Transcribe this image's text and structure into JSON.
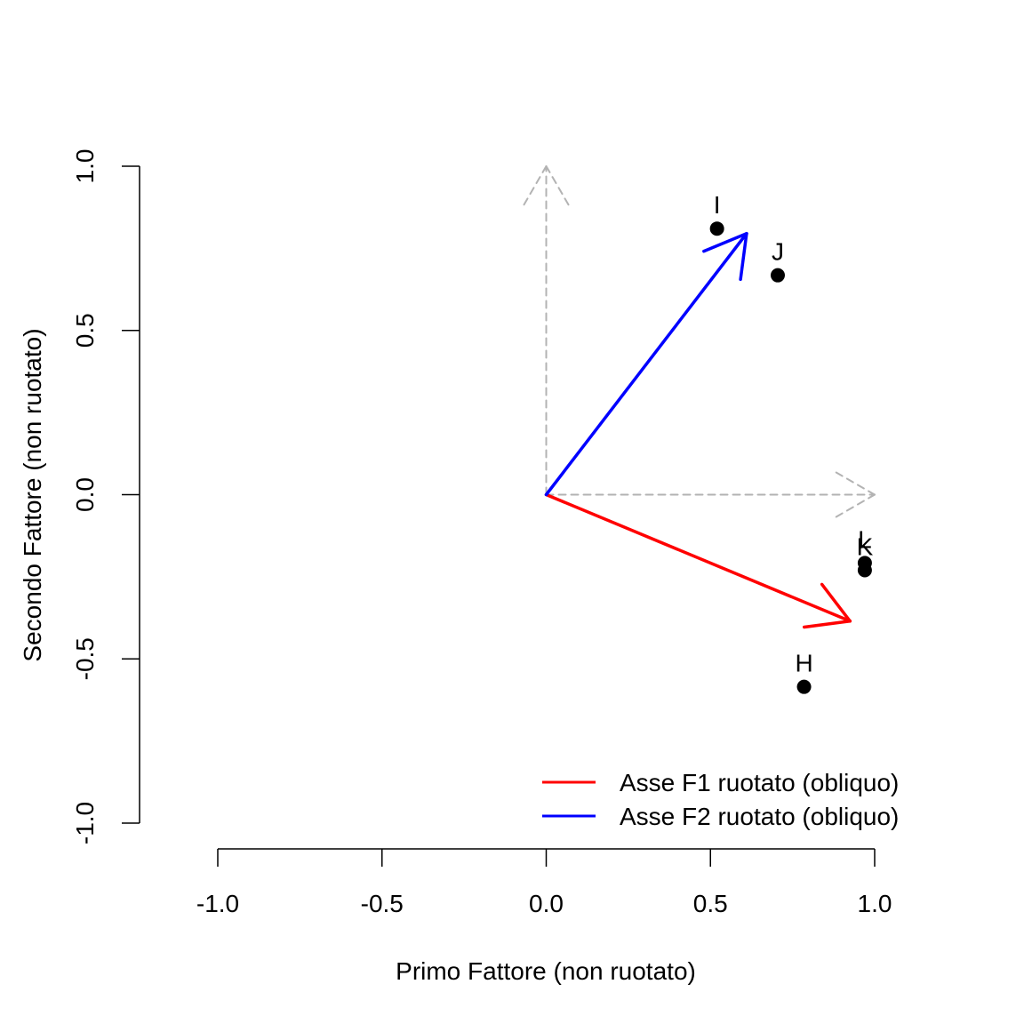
{
  "chart_data": {
    "type": "scatter",
    "xlabel": "Primo Fattore (non ruotato)",
    "ylabel": "Secondo Fattore (non ruotato)",
    "xlim": [
      -1.0,
      1.0
    ],
    "ylim": [
      -1.0,
      1.0
    ],
    "x_ticks": [
      "-1.0",
      "-0.5",
      "0.0",
      "0.5",
      "1.0"
    ],
    "y_ticks": [
      "-1.0",
      "-0.5",
      "0.0",
      "0.5",
      "1.0"
    ],
    "grid": false,
    "points": [
      {
        "label": "H",
        "x": 0.785,
        "y": -0.585
      },
      {
        "label": "I",
        "x": 0.52,
        "y": 0.81
      },
      {
        "label": "J",
        "x": 0.705,
        "y": 0.668
      },
      {
        "label": "K",
        "x": 0.97,
        "y": -0.23
      },
      {
        "label": "L",
        "x": 0.97,
        "y": -0.208
      }
    ],
    "reference_axes": [
      {
        "from": [
          0,
          0
        ],
        "to": [
          1.0,
          0
        ],
        "color": "#b3b3b3",
        "style": "dashed"
      },
      {
        "from": [
          0,
          0
        ],
        "to": [
          0,
          1.0
        ],
        "color": "#b3b3b3",
        "style": "dashed"
      }
    ],
    "series": [
      {
        "name": "Asse F1 ruotato (obliquo)",
        "from": [
          0,
          0
        ],
        "to": [
          0.925,
          -0.385
        ],
        "color": "#ff0000"
      },
      {
        "name": "Asse F2 ruotato (obliquo)",
        "from": [
          0,
          0
        ],
        "to": [
          0.61,
          0.795
        ],
        "color": "#0000ff"
      }
    ],
    "legend_position": "bottom-right"
  }
}
